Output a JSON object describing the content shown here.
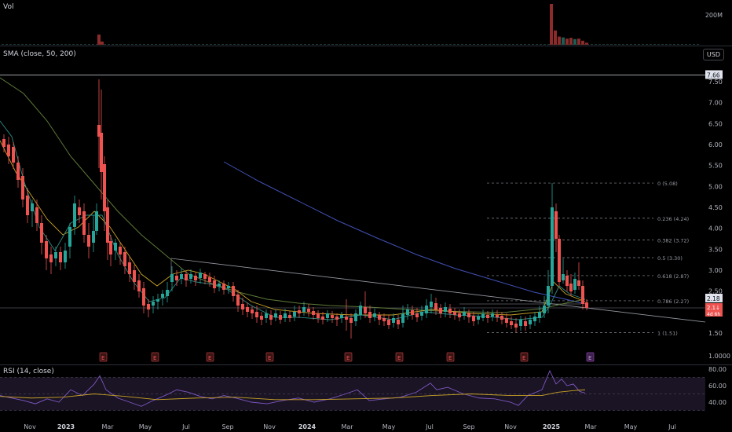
{
  "volume_pane": {
    "label": "Vol",
    "axis_label": "200M",
    "colors": {
      "up": "#1b5e55",
      "down": "#8b2b2b"
    },
    "bars": [
      {
        "x": 124,
        "v": 0.25,
        "d": "down"
      },
      {
        "x": 128,
        "v": 0.08,
        "d": "down"
      },
      {
        "x": 700,
        "v": 1.0,
        "d": "down"
      },
      {
        "x": 705,
        "v": 0.35,
        "d": "down"
      },
      {
        "x": 710,
        "v": 0.2,
        "d": "down"
      },
      {
        "x": 715,
        "v": 0.18,
        "d": "up"
      },
      {
        "x": 720,
        "v": 0.15,
        "d": "down"
      },
      {
        "x": 725,
        "v": 0.17,
        "d": "down"
      },
      {
        "x": 730,
        "v": 0.14,
        "d": "up"
      },
      {
        "x": 735,
        "v": 0.15,
        "d": "down"
      },
      {
        "x": 740,
        "v": 0.1,
        "d": "down"
      },
      {
        "x": 745,
        "v": 0.05,
        "d": "down"
      }
    ]
  },
  "main_pane": {
    "indicator_label": "SMA (close, 50, 200)",
    "currency_button": "USD",
    "price_axis": [
      "7.50",
      "7.00",
      "6.50",
      "6.00",
      "5.50",
      "5.00",
      "4.50",
      "4.00",
      "3.50",
      "3.00",
      "2.50",
      "1.50",
      "1.0000"
    ],
    "high_tag": "7.66",
    "current_tag": "2.18",
    "last_tag": "2.1↓",
    "countdown_tag": "4d 6h",
    "fib_levels": [
      {
        "label": "0 (5.08)",
        "price": 5.08
      },
      {
        "label": "0.236 (4.24)",
        "price": 4.24
      },
      {
        "label": "0.382 (3.72)",
        "price": 3.72
      },
      {
        "label": "0.5 (3.30)",
        "price": 3.3
      },
      {
        "label": "0.618 (2.87)",
        "price": 2.87
      },
      {
        "label": "0.786 (2.27)",
        "price": 2.27
      },
      {
        "label": "1 (1.51)",
        "price": 1.51
      }
    ],
    "earnings_marker": "E",
    "earnings_x": [
      131,
      197,
      267,
      343,
      443,
      508,
      573,
      667,
      751
    ],
    "colors": {
      "up": "#26a69a",
      "down": "#ef5350",
      "sma50": "#c9a227",
      "sma200": "#3f51b5"
    }
  },
  "time_axis": [
    "Nov",
    "2023",
    "Mar",
    "May",
    "Jul",
    "Sep",
    "Nov",
    "2024",
    "Mar",
    "May",
    "Jul",
    "Sep",
    "Nov",
    "2025",
    "Mar",
    "May",
    "Jul"
  ],
  "rsi_pane": {
    "label": "RSI (14, close)",
    "axis": [
      "80.00",
      "60.00",
      "40.00"
    ],
    "colors": {
      "rsi": "#7e57c2",
      "ma": "#c9a227"
    }
  }
}
